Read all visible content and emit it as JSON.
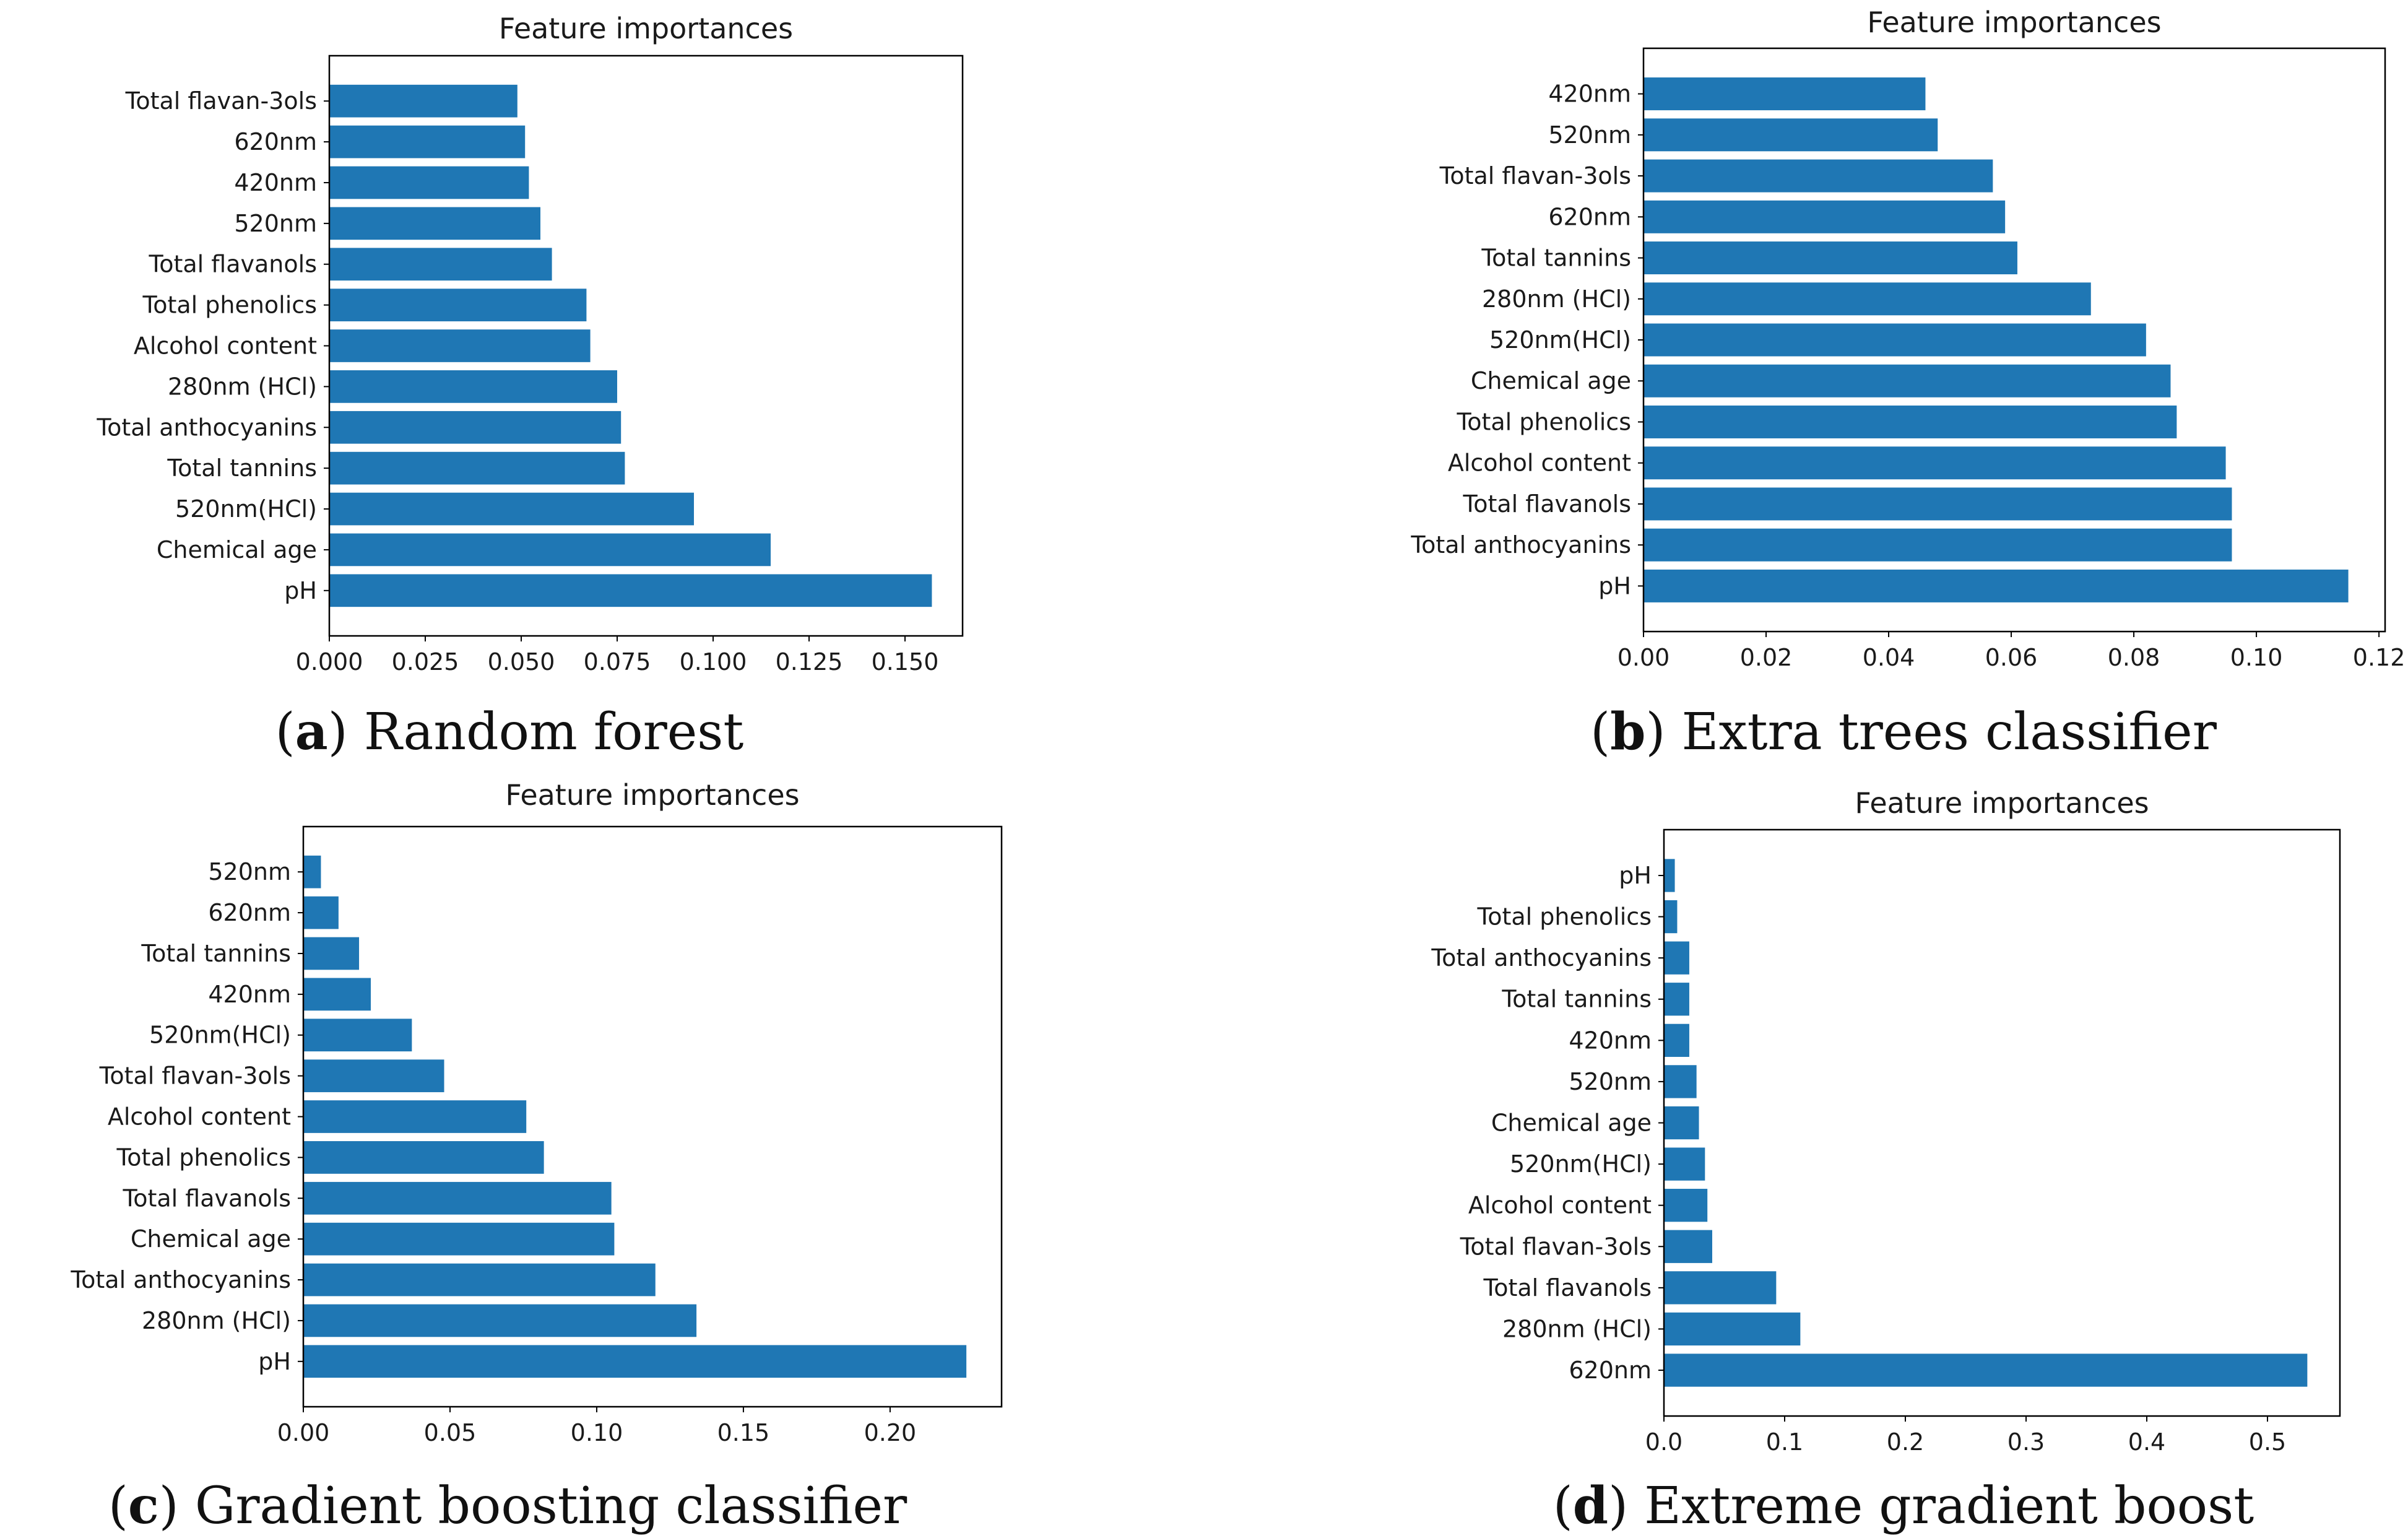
{
  "colors": {
    "bar": "#1f77b4",
    "axis": "#000000",
    "text": "#1a1a1a"
  },
  "chart_data": [
    {
      "type": "bar",
      "orientation": "horizontal",
      "title": "Feature importances",
      "caption_letter": "a",
      "caption_text": "Random forest",
      "categories": [
        "Total flavan-3ols",
        "620nm",
        "420nm",
        "520nm",
        "Total flavanols",
        "Total phenolics",
        "Alcohol content",
        "280nm (HCl)",
        "Total anthocyanins",
        "Total tannins",
        "520nm(HCl)",
        "Chemical age",
        "pH"
      ],
      "values": [
        0.049,
        0.051,
        0.052,
        0.055,
        0.058,
        0.067,
        0.068,
        0.075,
        0.076,
        0.077,
        0.095,
        0.115,
        0.157
      ],
      "xlim": [
        0.0,
        0.165
      ],
      "xticks": [
        0.0,
        0.025,
        0.05,
        0.075,
        0.1,
        0.125,
        0.15
      ],
      "xtick_labels": [
        "0.000",
        "0.025",
        "0.050",
        "0.075",
        "0.100",
        "0.125",
        "0.150"
      ],
      "grid": false
    },
    {
      "type": "bar",
      "orientation": "horizontal",
      "title": "Feature importances",
      "caption_letter": "b",
      "caption_text": "Extra trees classifier",
      "categories": [
        "420nm",
        "520nm",
        "Total flavan-3ols",
        "620nm",
        "Total tannins",
        "280nm (HCl)",
        "520nm(HCl)",
        "Chemical age",
        "Total phenolics",
        "Alcohol content",
        "Total flavanols",
        "Total anthocyanins",
        "pH"
      ],
      "values": [
        0.046,
        0.048,
        0.057,
        0.059,
        0.061,
        0.073,
        0.082,
        0.086,
        0.087,
        0.095,
        0.096,
        0.096,
        0.115
      ],
      "xlim": [
        0.0,
        0.121
      ],
      "xticks": [
        0.0,
        0.02,
        0.04,
        0.06,
        0.08,
        0.1,
        0.12
      ],
      "xtick_labels": [
        "0.00",
        "0.02",
        "0.04",
        "0.06",
        "0.08",
        "0.10",
        "0.12"
      ],
      "grid": false
    },
    {
      "type": "bar",
      "orientation": "horizontal",
      "title": "Feature importances",
      "caption_letter": "c",
      "caption_text": "Gradient boosting classifier",
      "categories": [
        "520nm",
        "620nm",
        "Total tannins",
        "420nm",
        "520nm(HCl)",
        "Total flavan-3ols",
        "Alcohol content",
        "Total phenolics",
        "Total flavanols",
        "Chemical age",
        "Total anthocyanins",
        "280nm (HCl)",
        "pH"
      ],
      "values": [
        0.006,
        0.012,
        0.019,
        0.023,
        0.037,
        0.048,
        0.076,
        0.082,
        0.105,
        0.106,
        0.12,
        0.134,
        0.226
      ],
      "xlim": [
        0.0,
        0.238
      ],
      "xticks": [
        0.0,
        0.05,
        0.1,
        0.15,
        0.2
      ],
      "xtick_labels": [
        "0.00",
        "0.05",
        "0.10",
        "0.15",
        "0.20"
      ],
      "grid": false
    },
    {
      "type": "bar",
      "orientation": "horizontal",
      "title": "Feature importances",
      "caption_letter": "d",
      "caption_text": "Extreme gradient boost",
      "categories": [
        "pH",
        "Total phenolics",
        "Total anthocyanins",
        "Total tannins",
        "420nm",
        "520nm",
        "Chemical age",
        "520nm(HCl)",
        "Alcohol content",
        "Total flavan-3ols",
        "Total flavanols",
        "280nm (HCl)",
        "620nm"
      ],
      "values": [
        0.009,
        0.011,
        0.021,
        0.021,
        0.021,
        0.027,
        0.029,
        0.034,
        0.036,
        0.04,
        0.093,
        0.113,
        0.533
      ],
      "xlim": [
        0.0,
        0.56
      ],
      "xticks": [
        0.0,
        0.1,
        0.2,
        0.3,
        0.4,
        0.5
      ],
      "xtick_labels": [
        "0.0",
        "0.1",
        "0.2",
        "0.3",
        "0.4",
        "0.5"
      ],
      "grid": false
    }
  ]
}
